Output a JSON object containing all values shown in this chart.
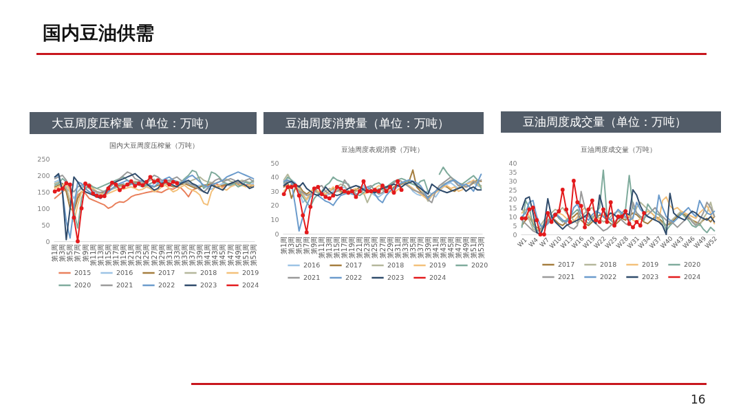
{
  "chart_data": [
    {
      "type": "other",
      "title": "国内豆油供需",
      "annotations": [
        "16"
      ]
    },
    {
      "type": "line",
      "title": "大豆周度压榨量（单位：万吨）",
      "subtitle": "国内大豆周度压榨量（万吨）",
      "categories": [
        "第1周",
        null,
        "第3周",
        null,
        "第5周",
        null,
        "第7周",
        null,
        "第9周",
        null,
        "第11周",
        null,
        "第13周",
        null,
        "第15周",
        null,
        "第17周",
        null,
        "第19周",
        null,
        "第21周",
        null,
        "第23周",
        null,
        "第25周",
        null,
        "第27周",
        null,
        "第29周",
        null,
        "第31周",
        null,
        "第33周",
        null,
        "第35周",
        null,
        "第37周",
        null,
        "第39周",
        null,
        "第41周",
        null,
        "第43周",
        null,
        "第45周",
        null,
        "第47周",
        null,
        "第49周",
        null,
        "第51周",
        null,
        "第53周"
      ],
      "series": [
        {
          "name": "2015",
          "color": "#e9805c",
          "values": [
            130,
            140,
            150,
            160,
            120,
            95,
            140,
            150,
            145,
            130,
            125,
            120,
            115,
            110,
            100,
            105,
            115,
            120,
            118,
            125,
            135,
            140,
            142,
            145,
            148,
            150,
            152,
            150,
            148,
            155,
            160,
            158,
            165,
            162,
            150,
            135,
            155,
            160,
            165,
            170,
            168,
            172,
            175,
            170,
            165,
            172,
            168,
            175,
            178,
            172,
            170,
            175,
            168
          ]
        },
        {
          "name": "2016",
          "color": "#9cc3e5",
          "values": [
            180,
            185,
            175,
            160,
            150,
            130,
            150,
            165,
            170,
            160,
            150,
            145,
            140,
            145,
            150,
            160,
            165,
            170,
            175,
            168,
            172,
            178,
            175,
            170,
            165,
            160,
            175,
            180,
            185,
            190,
            182,
            178,
            175,
            180,
            185,
            178,
            172,
            168,
            170,
            165,
            160,
            158,
            165,
            170,
            175,
            172,
            168,
            170,
            175,
            180,
            178,
            172,
            175
          ]
        },
        {
          "name": "2017",
          "color": "#a47d3e",
          "values": [
            165,
            170,
            175,
            150,
            100,
            90,
            130,
            150,
            160,
            165,
            160,
            150,
            145,
            150,
            155,
            160,
            165,
            170,
            172,
            168,
            175,
            180,
            178,
            172,
            170,
            168,
            165,
            170,
            172,
            175,
            170,
            165,
            168,
            172,
            175,
            170,
            165,
            160,
            165,
            170,
            172,
            175,
            168,
            165,
            170,
            172,
            175,
            178,
            172,
            170,
            168,
            165,
            170
          ]
        },
        {
          "name": "2018",
          "color": "#b4b79b",
          "values": [
            175,
            180,
            170,
            165,
            120,
            110,
            150,
            160,
            170,
            175,
            165,
            160,
            155,
            150,
            155,
            158,
            162,
            165,
            170,
            175,
            178,
            182,
            180,
            175,
            178,
            185,
            188,
            182,
            178,
            175,
            180,
            185,
            182,
            178,
            175,
            180,
            185,
            190,
            195,
            185,
            180,
            178,
            175,
            180,
            185,
            188,
            182,
            178,
            180,
            185,
            182,
            178,
            180
          ]
        },
        {
          "name": "2019",
          "color": "#f3c07a",
          "values": [
            160,
            165,
            170,
            175,
            150,
            60,
            110,
            150,
            160,
            165,
            160,
            150,
            145,
            140,
            145,
            150,
            155,
            160,
            158,
            162,
            165,
            160,
            155,
            158,
            165,
            160,
            150,
            155,
            165,
            170,
            160,
            150,
            155,
            165,
            170,
            160,
            155,
            150,
            140,
            115,
            110,
            150,
            165,
            170,
            160,
            155,
            165,
            170,
            175,
            170,
            165,
            172,
            168
          ]
        },
        {
          "name": "2020",
          "color": "#7fab9c",
          "values": [
            170,
            175,
            190,
            180,
            170,
            90,
            40,
            130,
            160,
            170,
            165,
            160,
            165,
            170,
            175,
            180,
            185,
            190,
            195,
            185,
            180,
            175,
            170,
            165,
            170,
            175,
            180,
            178,
            175,
            180,
            185,
            180,
            175,
            178,
            190,
            200,
            215,
            210,
            185,
            160,
            175,
            210,
            205,
            195,
            180,
            175,
            170,
            175,
            165,
            170,
            180,
            175,
            185
          ]
        },
        {
          "name": "2021",
          "color": "#9a9a9a",
          "values": [
            190,
            195,
            200,
            185,
            160,
            150,
            165,
            170,
            175,
            160,
            155,
            150,
            148,
            152,
            160,
            170,
            180,
            190,
            200,
            210,
            205,
            190,
            185,
            180,
            175,
            190,
            200,
            195,
            185,
            180,
            185,
            190,
            195,
            185,
            180,
            175,
            170,
            165,
            155,
            150,
            160,
            175,
            185,
            190,
            180,
            185,
            190,
            185,
            175,
            180,
            185,
            190,
            180
          ]
        },
        {
          "name": "2022",
          "color": "#6b9bcc",
          "values": [
            195,
            200,
            150,
            60,
            10,
            100,
            180,
            175,
            160,
            150,
            145,
            140,
            135,
            140,
            150,
            160,
            170,
            175,
            180,
            185,
            175,
            170,
            180,
            185,
            175,
            170,
            165,
            175,
            180,
            190,
            195,
            185,
            180,
            175,
            185,
            195,
            200,
            190,
            180,
            170,
            165,
            170,
            175,
            180,
            185,
            195,
            200,
            205,
            210,
            205,
            200,
            195,
            190
          ]
        },
        {
          "name": "2023",
          "color": "#2f4b6b",
          "values": [
            195,
            205,
            150,
            5,
            100,
            195,
            180,
            160,
            150,
            145,
            140,
            135,
            130,
            140,
            165,
            175,
            180,
            185,
            190,
            195,
            200,
            205,
            195,
            185,
            175,
            165,
            155,
            160,
            175,
            180,
            175,
            170,
            165,
            175,
            180,
            185,
            175,
            170,
            160,
            150,
            145,
            170,
            165,
            160,
            155,
            170,
            175,
            180,
            185,
            175,
            170,
            160,
            165
          ]
        },
        {
          "name": "2024",
          "color": "#e31a1c",
          "marker": "circle",
          "values": [
            151,
            156,
            160,
            176,
            172,
            72,
            0,
            100,
            175,
            168,
            145,
            138,
            136,
            137,
            160,
            178,
            172,
            155,
            165,
            172,
            182,
            168,
            175,
            170,
            180,
            195,
            180,
            185,
            170,
            182,
            172,
            180,
            176,
            null,
            null,
            null,
            null,
            null,
            null,
            null,
            null,
            null,
            null,
            null,
            null,
            null,
            null,
            null,
            null,
            null,
            null,
            null,
            null
          ]
        }
      ],
      "ylim": [
        0,
        250
      ],
      "yticks": [
        0,
        50,
        100,
        150,
        200,
        250
      ],
      "legend": "bottom"
    },
    {
      "type": "line",
      "title": "豆油周度消费量（单位：万吨）",
      "subtitle": "豆油周度表观消费（万吨）",
      "categories": [
        "第1周",
        null,
        "第3周",
        null,
        "第5周",
        null,
        "第7周",
        null,
        "第9周",
        null,
        "第11周",
        null,
        "第13周",
        null,
        "第15周",
        null,
        "第17周",
        null,
        "第19周",
        null,
        "第21周",
        null,
        "第23周",
        null,
        "第25周",
        null,
        "第27周",
        null,
        "第29周",
        null,
        "第31周",
        null,
        "第33周",
        null,
        "第35周",
        null,
        "第37周",
        null,
        "第39周",
        null,
        "第41周",
        null,
        "第43周",
        null,
        "第45周",
        null,
        "第47周",
        null,
        "第49周",
        null,
        "第51周",
        null,
        "第53周"
      ],
      "series": [
        {
          "name": "2016",
          "color": "#9cc3e5",
          "values": [
            35,
            37,
            38,
            36,
            30,
            22,
            25,
            28,
            30,
            29,
            28,
            27,
            28,
            30,
            31,
            32,
            33,
            30,
            28,
            30,
            32,
            34,
            31,
            29,
            27,
            26,
            28,
            30,
            32,
            31,
            33,
            35,
            36,
            34,
            30,
            28,
            27,
            29,
            30,
            28,
            26,
            30,
            33,
            35,
            36,
            34,
            32,
            33,
            35,
            37,
            36,
            34,
            33
          ]
        },
        {
          "name": "2017",
          "color": "#a47d3e",
          "values": [
            33,
            36,
            25,
            32,
            34,
            30,
            28,
            30,
            31,
            29,
            27,
            28,
            30,
            32,
            31,
            30,
            29,
            28,
            30,
            31,
            33,
            32,
            30,
            31,
            29,
            30,
            32,
            31,
            30,
            33,
            34,
            35,
            36,
            37,
            45,
            33,
            30,
            27,
            26,
            28,
            30,
            32,
            34,
            33,
            31,
            30,
            32,
            35,
            33,
            34,
            36,
            38,
            37
          ]
        },
        {
          "name": "2018",
          "color": "#b4b79b",
          "values": [
            38,
            42,
            37,
            35,
            33,
            28,
            24,
            27,
            30,
            29,
            28,
            30,
            32,
            31,
            33,
            35,
            34,
            30,
            28,
            30,
            31,
            29,
            22,
            28,
            30,
            32,
            31,
            29,
            33,
            35,
            34,
            36,
            37,
            36,
            35,
            34,
            33,
            28,
            23,
            27,
            30,
            32,
            35,
            36,
            38,
            37,
            34,
            33,
            35,
            36,
            37,
            35,
            34
          ]
        },
        {
          "name": "2019",
          "color": "#f3c07a",
          "values": [
            30,
            33,
            35,
            34,
            31,
            27,
            24,
            30,
            32,
            30,
            29,
            28,
            30,
            33,
            31,
            29,
            28,
            30,
            31,
            32,
            30,
            28,
            29,
            30,
            32,
            34,
            33,
            31,
            30,
            29,
            31,
            33,
            35,
            34,
            32,
            30,
            28,
            26,
            24,
            27,
            29,
            31,
            33,
            34,
            32,
            33,
            30,
            31,
            35,
            36,
            38,
            35,
            33
          ]
        },
        {
          "name": "2020",
          "color": "#7fab9c",
          "values": [
            36,
            40,
            38,
            33,
            30,
            26,
            22,
            19,
            25,
            28,
            30,
            34,
            36,
            40,
            38,
            37,
            36,
            35,
            30,
            28,
            27,
            29,
            31,
            33,
            35,
            36,
            34,
            33,
            35,
            37,
            38,
            39,
            38,
            36,
            35,
            34,
            37,
            38,
            30,
            null,
            null,
            42,
            47,
            43,
            40,
            38,
            36,
            35,
            37,
            39,
            41,
            38,
            32
          ]
        },
        {
          "name": "2021",
          "color": "#9a9a9a",
          "values": [
            34,
            38,
            36,
            33,
            30,
            29,
            27,
            28,
            29,
            33,
            34,
            30,
            28,
            29,
            30,
            31,
            38,
            34,
            30,
            28,
            29,
            31,
            33,
            34,
            30,
            28,
            29,
            32,
            34,
            36,
            38,
            37,
            35,
            33,
            31,
            30,
            29,
            28,
            24,
            22,
            30,
            34,
            36,
            38,
            40,
            37,
            34,
            35,
            33,
            34,
            37,
            36,
            38
          ]
        },
        {
          "name": "2022",
          "color": "#6b9bcc",
          "values": [
            37,
            38,
            36,
            20,
            2,
            12,
            20,
            26,
            28,
            27,
            25,
            23,
            22,
            20,
            24,
            27,
            28,
            29,
            28,
            27,
            30,
            32,
            33,
            31,
            28,
            24,
            22,
            27,
            30,
            32,
            34,
            36,
            37,
            38,
            37,
            36,
            34,
            30,
            25,
            28,
            30,
            32,
            34,
            36,
            37,
            38,
            36,
            34,
            35,
            33,
            30,
            36,
            42
          ]
        },
        {
          "name": "2023",
          "color": "#2f4b6b",
          "values": [
            34,
            36,
            37,
            35,
            33,
            36,
            32,
            30,
            28,
            27,
            29,
            33,
            30,
            28,
            27,
            28,
            30,
            32,
            33,
            34,
            33,
            31,
            30,
            30,
            29,
            31,
            32,
            33,
            34,
            35,
            34,
            33,
            35,
            36,
            37,
            34,
            32,
            30,
            28,
            35,
            33,
            31,
            30,
            29,
            30,
            31,
            32,
            33,
            30,
            32,
            33,
            31,
            31
          ]
        },
        {
          "name": "2024",
          "color": "#e31a1c",
          "marker": "circle",
          "values": [
            28,
            33,
            33,
            34,
            27,
            13,
            1,
            19,
            32,
            33,
            28,
            26,
            25,
            27,
            33,
            32,
            30,
            29,
            30,
            26,
            30,
            37,
            30,
            30,
            31,
            30,
            34,
            30,
            33,
            29,
            37,
            31,
            null,
            null,
            null,
            null,
            null,
            null,
            null,
            null,
            null,
            null,
            null,
            null,
            null,
            null,
            null,
            null,
            null,
            null,
            null,
            null,
            null
          ]
        }
      ],
      "ylim": [
        0,
        50
      ],
      "yticks": [
        0,
        10,
        20,
        30,
        40,
        50
      ],
      "legend": "bottom"
    },
    {
      "type": "line",
      "title": "豆油周度成交量（单位：万吨）",
      "subtitle": "豆油周度成交量（万吨）",
      "categories": [
        "W1",
        null,
        null,
        "W4",
        null,
        null,
        "W7",
        null,
        null,
        "W10",
        null,
        null,
        "W13",
        null,
        null,
        "W16",
        null,
        null,
        "W19",
        null,
        null,
        "W22",
        null,
        null,
        "W25",
        null,
        null,
        "W28",
        null,
        null,
        "W31",
        null,
        null,
        "W34",
        null,
        null,
        "W37",
        null,
        null,
        "W40",
        null,
        null,
        "W43",
        null,
        null,
        "W46",
        null,
        null,
        "W49",
        null,
        null,
        "W52",
        null
      ],
      "series": [
        {
          "name": "2017",
          "color": "#a47d3e",
          "values": [
            5,
            8,
            10,
            6,
            4,
            3,
            5,
            7,
            9,
            8,
            6,
            5,
            7,
            9,
            10,
            12,
            8,
            6,
            5,
            7,
            9,
            11,
            10,
            8,
            6,
            5,
            7,
            9,
            8,
            10,
            12,
            11,
            9,
            7,
            6,
            8,
            10,
            9,
            7,
            5,
            6,
            8,
            10,
            12,
            11,
            9,
            8,
            7,
            6,
            8,
            9,
            7,
            10
          ]
        },
        {
          "name": "2018",
          "color": "#b4b79b",
          "values": [
            14,
            12,
            8,
            3,
            2,
            5,
            8,
            10,
            12,
            14,
            13,
            15,
            12,
            10,
            8,
            6,
            9,
            12,
            14,
            15,
            11,
            9,
            7,
            8,
            10,
            12,
            13,
            11,
            9,
            8,
            10,
            15,
            18,
            16,
            14,
            12,
            10,
            8,
            6,
            5,
            7,
            9,
            11,
            13,
            12,
            10,
            8,
            6,
            5,
            9,
            12,
            18,
            10
          ]
        },
        {
          "name": "2019",
          "color": "#f3c07a",
          "values": [
            12,
            14,
            10,
            8,
            3,
            2,
            4,
            6,
            8,
            10,
            12,
            11,
            9,
            8,
            7,
            10,
            13,
            15,
            12,
            10,
            8,
            9,
            11,
            10,
            8,
            7,
            9,
            11,
            12,
            10,
            8,
            7,
            9,
            11,
            13,
            12,
            10,
            8,
            19,
            21,
            16,
            14,
            15,
            13,
            12,
            11,
            10,
            9,
            12,
            14,
            16,
            12,
            6
          ]
        },
        {
          "name": "2020",
          "color": "#7fab9c",
          "values": [
            4,
            19,
            15,
            5,
            2,
            3,
            6,
            8,
            10,
            12,
            9,
            7,
            8,
            10,
            12,
            14,
            10,
            8,
            6,
            9,
            12,
            15,
            36,
            10,
            8,
            6,
            9,
            12,
            14,
            33,
            15,
            12,
            10,
            8,
            17,
            14,
            12,
            11,
            9,
            2,
            5,
            7,
            9,
            12,
            10,
            8,
            5,
            4,
            6,
            3,
            1,
            4,
            2
          ]
        },
        {
          "name": "2021",
          "color": "#9a9a9a",
          "values": [
            8,
            6,
            4,
            2,
            1,
            3,
            5,
            7,
            9,
            11,
            10,
            8,
            6,
            4,
            3,
            5,
            24,
            15,
            10,
            8,
            6,
            4,
            2,
            3,
            5,
            7,
            9,
            8,
            6,
            5,
            18,
            12,
            10,
            9,
            11,
            13,
            15,
            12,
            10,
            8,
            7,
            6,
            4,
            6,
            8,
            10,
            7,
            5,
            8,
            12,
            18,
            15,
            10
          ]
        },
        {
          "name": "2022",
          "color": "#6b9bcc",
          "values": [
            10,
            12,
            18,
            19,
            10,
            5,
            4,
            6,
            9,
            12,
            10,
            8,
            7,
            9,
            15,
            17,
            12,
            10,
            8,
            11,
            13,
            12,
            10,
            9,
            8,
            11,
            14,
            12,
            10,
            8,
            9,
            18,
            14,
            12,
            10,
            9,
            8,
            22,
            15,
            10,
            8,
            7,
            9,
            11,
            13,
            15,
            12,
            10,
            19,
            15,
            12,
            11,
            13
          ]
        },
        {
          "name": "2023",
          "color": "#2f4b6b",
          "values": [
            14,
            20,
            21,
            12,
            1,
            0,
            5,
            20,
            10,
            7,
            5,
            3,
            5,
            6,
            7,
            8,
            9,
            10,
            12,
            8,
            6,
            22,
            14,
            10,
            12,
            11,
            9,
            10,
            12,
            11,
            25,
            22,
            16,
            12,
            10,
            9,
            8,
            7,
            5,
            0,
            23,
            12,
            10,
            9,
            8,
            11,
            13,
            12,
            10,
            9,
            8,
            10,
            7
          ]
        },
        {
          "name": "2024",
          "color": "#e31a1c",
          "marker": "circle",
          "values": [
            9,
            9,
            14,
            15,
            8,
            0,
            0,
            12,
            7,
            11,
            13,
            25,
            14,
            7,
            30,
            18,
            16,
            4,
            14,
            19,
            8,
            7,
            14,
            7,
            18,
            5,
            10,
            10,
            13,
            6,
            4,
            7,
            5,
            12,
            null,
            null,
            null,
            null,
            null,
            null,
            null,
            null,
            null,
            null,
            null,
            null,
            null,
            null,
            null,
            null,
            null,
            null,
            null
          ]
        }
      ],
      "ylim": [
        0,
        40
      ],
      "yticks": [
        0,
        5,
        10,
        15,
        20,
        25,
        30,
        35,
        40
      ],
      "legend": "bottom"
    }
  ]
}
